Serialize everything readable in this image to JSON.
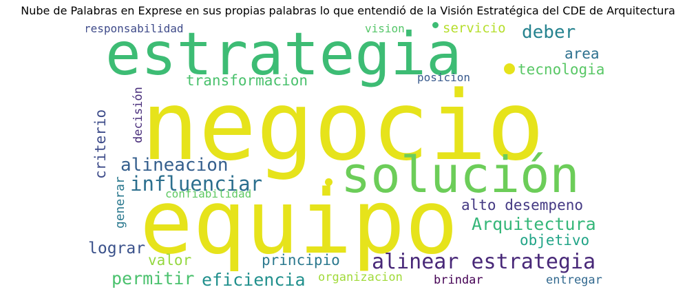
{
  "title": "Nube de Palabras en Exprese en sus propias palabras  lo que entendió de la Visión Estratégica del CDE de Arquitectura",
  "words": [
    {
      "text": "negocio",
      "color": "#e6e31b"
    },
    {
      "text": "estrategia",
      "color": "#3dbc74"
    },
    {
      "text": "equipo",
      "color": "#e6e31b"
    },
    {
      "text": "solución",
      "color": "#6ccd59"
    },
    {
      "text": "influenciar",
      "color": "#2c6f8e"
    },
    {
      "text": "alineacion",
      "color": "#355f8d"
    },
    {
      "text": "alinear estrategia",
      "color": "#482878"
    },
    {
      "text": "deber",
      "color": "#26838f"
    },
    {
      "text": "tecnologia",
      "color": "#58c765"
    },
    {
      "text": "area",
      "color": "#2d708e"
    },
    {
      "text": "transformacion",
      "color": "#4ac16d"
    },
    {
      "text": "responsabilidad",
      "color": "#3e4a89"
    },
    {
      "text": "vision",
      "color": "#54c568"
    },
    {
      "text": "servicio",
      "color": "#b5de2b"
    },
    {
      "text": "posicion",
      "color": "#38598c"
    },
    {
      "text": "criterio",
      "color": "#3e4c8a"
    },
    {
      "text": "decisión",
      "color": "#472c7a"
    },
    {
      "text": "generar",
      "color": "#2a788e"
    },
    {
      "text": "confiabilidad",
      "color": "#5ec962"
    },
    {
      "text": "alto desempeno",
      "color": "#443983"
    },
    {
      "text": "Arquitectura",
      "color": "#35b779"
    },
    {
      "text": "objetivo",
      "color": "#20a486"
    },
    {
      "text": "lograr",
      "color": "#3b528b"
    },
    {
      "text": "valor",
      "color": "#95d840"
    },
    {
      "text": "principio",
      "color": "#2a788e"
    },
    {
      "text": "permitir",
      "color": "#4ac16d"
    },
    {
      "text": "eficiencia",
      "color": "#21908d"
    },
    {
      "text": "organizacion",
      "color": "#a0da39"
    },
    {
      "text": "brindar",
      "color": "#440154"
    },
    {
      "text": "entregar",
      "color": "#31688e"
    }
  ]
}
